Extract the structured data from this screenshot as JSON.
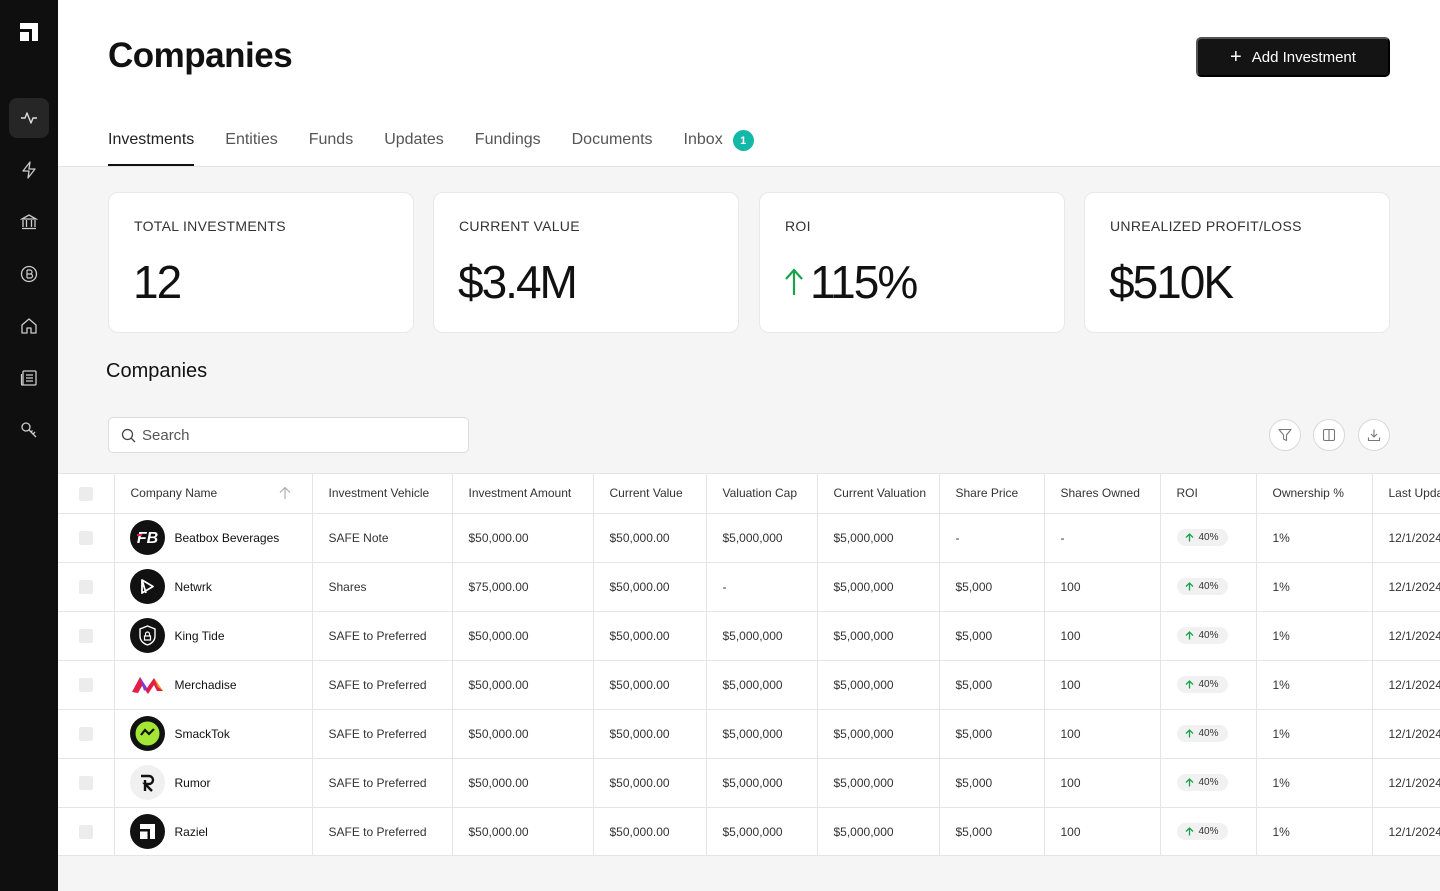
{
  "sidebar": {
    "logo_icon": "brand-logo-icon",
    "items": [
      {
        "icon": "activity-icon",
        "active": true
      },
      {
        "icon": "lightning-icon",
        "active": false
      },
      {
        "icon": "bank-icon",
        "active": false
      },
      {
        "icon": "bitcoin-icon",
        "active": false
      },
      {
        "icon": "home-icon",
        "active": false
      },
      {
        "icon": "newspaper-icon",
        "active": false
      },
      {
        "icon": "key-icon",
        "active": false
      }
    ]
  },
  "header": {
    "title": "Companies",
    "add_button_label": "Add Investment"
  },
  "tabs": [
    {
      "label": "Investments",
      "active": true
    },
    {
      "label": "Entities"
    },
    {
      "label": "Funds"
    },
    {
      "label": "Updates"
    },
    {
      "label": "Fundings"
    },
    {
      "label": "Documents"
    },
    {
      "label": "Inbox",
      "badge": "1"
    }
  ],
  "stats": [
    {
      "label": "TOTAL INVESTMENTS",
      "value": "12"
    },
    {
      "label": "CURRENT VALUE",
      "value": "$3.4M"
    },
    {
      "label": "ROI",
      "value": "115%"
    },
    {
      "label": "UNREALIZED PROFIT/LOSS",
      "value": "$510K"
    }
  ],
  "colors": {
    "accent_teal": "#14b8a6",
    "roi_green": "#16a34a",
    "sidebar_bg": "#0f0f0f"
  },
  "companies_section": {
    "title": "Companies",
    "search_placeholder": "Search"
  },
  "table": {
    "columns": [
      "Company Name",
      "Investment Vehicle",
      "Investment Amount",
      "Current Value",
      "Valuation Cap",
      "Current Valuation",
      "Share Price",
      "Shares Owned",
      "ROI",
      "Ownership %",
      "Last Updated"
    ],
    "rows": [
      {
        "name": "Beatbox Beverages",
        "logo": "fb-logo-icon",
        "vehicle": "SAFE Note",
        "amount": "$50,000.00",
        "current": "$50,000.00",
        "cap": "$5,000,000",
        "valuation": "$5,000,000",
        "share_price": "-",
        "shares": "-",
        "roi": "40%",
        "ownership": "1%",
        "updated": "12/1/2024"
      },
      {
        "name": "Netwrk",
        "logo": "netwrk-logo-icon",
        "vehicle": "Shares",
        "amount": "$75,000.00",
        "current": "$50,000.00",
        "cap": "-",
        "valuation": "$5,000,000",
        "share_price": "$5,000",
        "shares": "100",
        "roi": "40%",
        "ownership": "1%",
        "updated": "12/1/2024"
      },
      {
        "name": "King Tide",
        "logo": "shield-logo-icon",
        "vehicle": "SAFE to Preferred",
        "amount": "$50,000.00",
        "current": "$50,000.00",
        "cap": "$5,000,000",
        "valuation": "$5,000,000",
        "share_price": "$5,000",
        "shares": "100",
        "roi": "40%",
        "ownership": "1%",
        "updated": "12/1/2024"
      },
      {
        "name": "Merchadise",
        "logo": "wave-logo-icon",
        "vehicle": "SAFE to Preferred",
        "amount": "$50,000.00",
        "current": "$50,000.00",
        "cap": "$5,000,000",
        "valuation": "$5,000,000",
        "share_price": "$5,000",
        "shares": "100",
        "roi": "40%",
        "ownership": "1%",
        "updated": "12/1/2024"
      },
      {
        "name": "SmackTok",
        "logo": "smacktok-logo-icon",
        "vehicle": "SAFE to Preferred",
        "amount": "$50,000.00",
        "current": "$50,000.00",
        "cap": "$5,000,000",
        "valuation": "$5,000,000",
        "share_price": "$5,000",
        "shares": "100",
        "roi": "40%",
        "ownership": "1%",
        "updated": "12/1/2024"
      },
      {
        "name": "Rumor",
        "logo": "rumor-logo-icon",
        "vehicle": "SAFE to Preferred",
        "amount": "$50,000.00",
        "current": "$50,000.00",
        "cap": "$5,000,000",
        "valuation": "$5,000,000",
        "share_price": "$5,000",
        "shares": "100",
        "roi": "40%",
        "ownership": "1%",
        "updated": "12/1/2024"
      },
      {
        "name": "Raziel",
        "logo": "raziel-logo-icon",
        "vehicle": "SAFE to Preferred",
        "amount": "$50,000.00",
        "current": "$50,000.00",
        "cap": "$5,000,000",
        "valuation": "$5,000,000",
        "share_price": "$5,000",
        "shares": "100",
        "roi": "40%",
        "ownership": "1%",
        "updated": "12/1/2024"
      }
    ]
  }
}
